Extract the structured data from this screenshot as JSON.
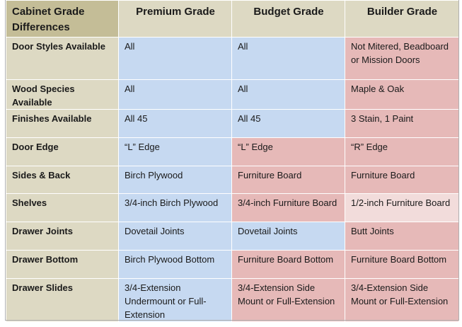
{
  "table": {
    "header": [
      "Cabinet Grade Differences",
      "Premium Grade",
      "Budget Grade",
      "Builder Grade"
    ],
    "rows": [
      [
        "Door Styles Available",
        "All",
        "All",
        "Not Mitered, Beadboard or Mission Doors"
      ],
      [
        "Wood Species Available",
        "All",
        "All",
        "Maple & Oak"
      ],
      [
        "Finishes Available",
        "All 45",
        "All 45",
        "3 Stain, 1 Paint"
      ],
      [
        "Door Edge",
        "“L” Edge",
        "“L” Edge",
        "“R” Edge"
      ],
      [
        "Sides & Back",
        "Birch Plywood",
        "Furniture Board",
        "Furniture Board"
      ],
      [
        "Shelves",
        "3/4-inch Birch Plywood",
        "3/4-inch Furniture Board",
        "1/2-inch Furniture Board"
      ],
      [
        "Drawer Joints",
        "Dovetail Joints",
        "Dovetail Joints",
        "Butt Joints"
      ],
      [
        "Drawer Bottom",
        "Birch Plywood Bottom",
        "Furniture Board Bottom",
        "Furniture Board Bottom"
      ],
      [
        "Drawer Slides",
        "3/4-Extension Undermount or Full-Extension",
        "3/4-Extension Side Mount or Full-Extension",
        "3/4-Extension Side Mount or Full-Extension"
      ]
    ]
  }
}
